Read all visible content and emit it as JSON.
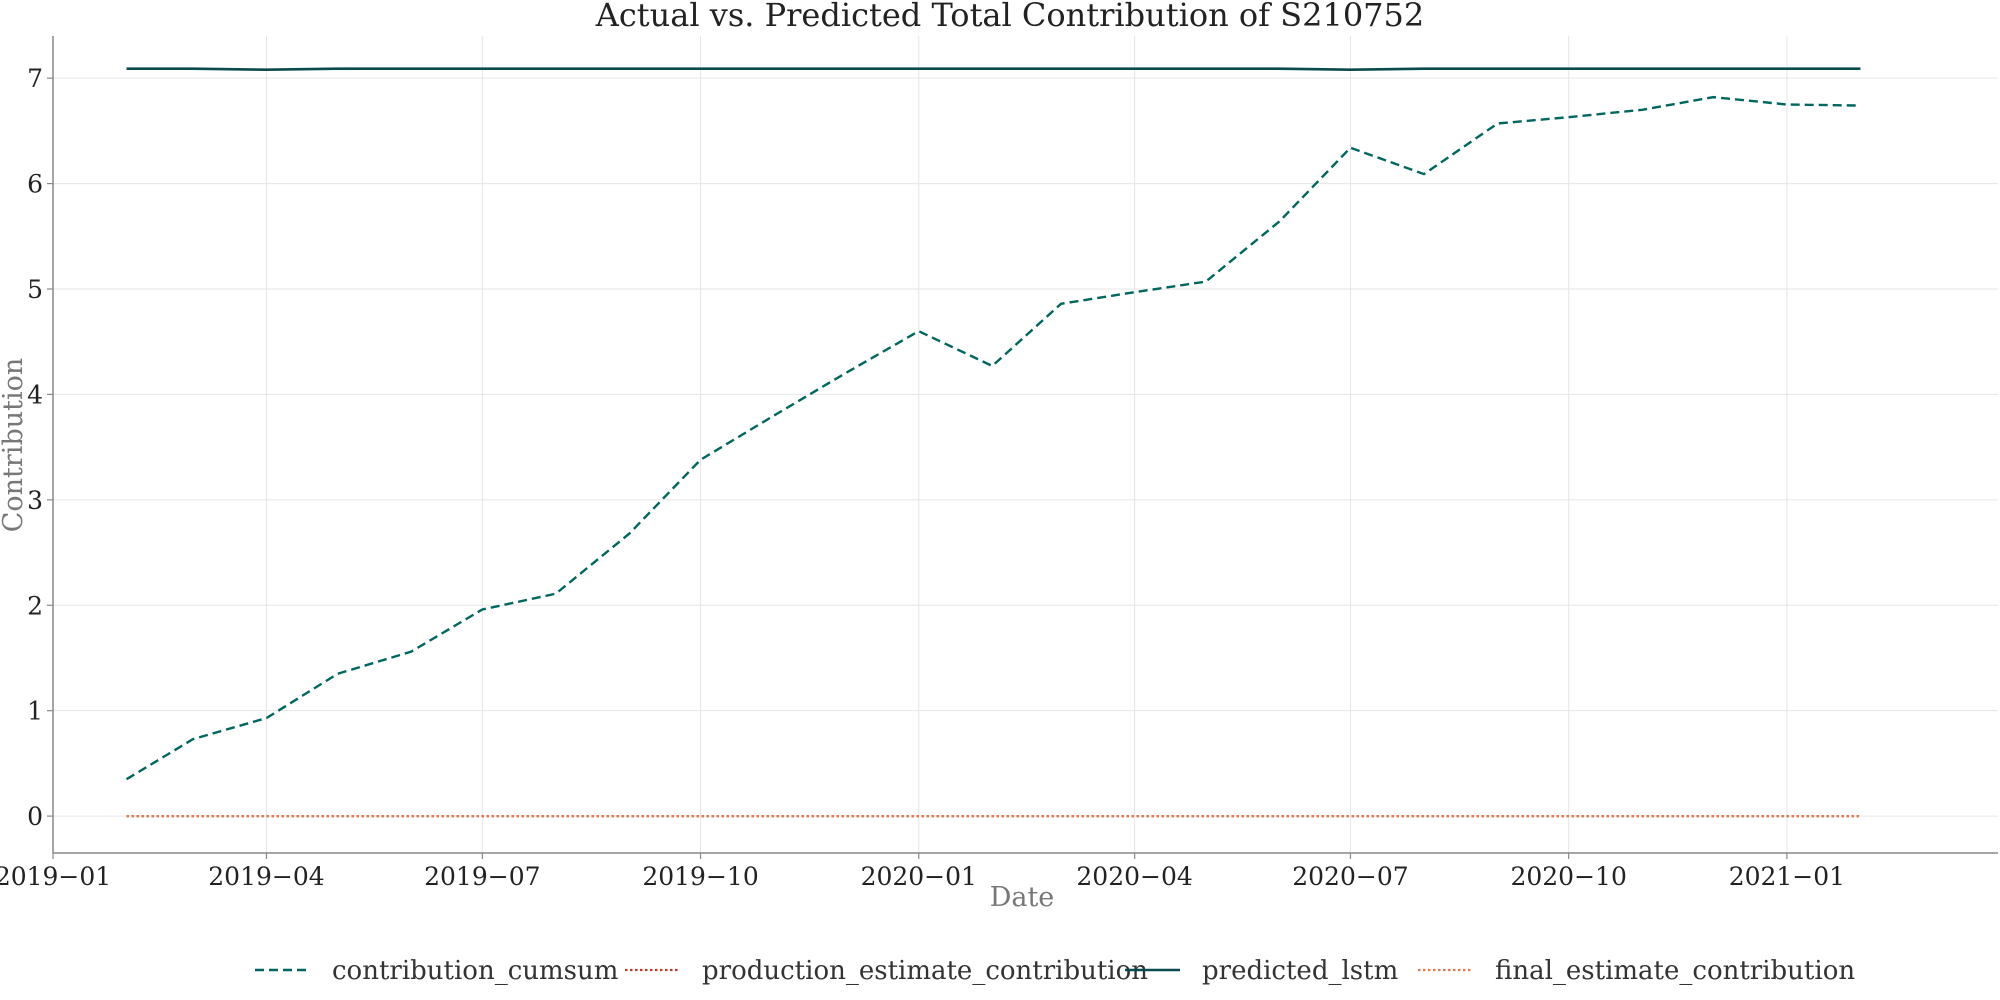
{
  "chart_data": {
    "type": "line",
    "title": "Actual vs. Predicted Total Contribution of S210752",
    "xlabel": "Date",
    "ylabel": "Contribution",
    "x_axis_type": "date",
    "xlim": [
      "2019-01-01",
      "2021-03-31"
    ],
    "ylim": [
      -0.35,
      7.4
    ],
    "x_ticks": [
      "2019-01-01",
      "2019-04-01",
      "2019-07-01",
      "2019-10-01",
      "2020-01-01",
      "2020-04-01",
      "2020-07-01",
      "2020-10-01",
      "2021-01-01"
    ],
    "x_tick_labels": [
      "2019−01",
      "2019−04",
      "2019−07",
      "2019−10",
      "2020−01",
      "2020−04",
      "2020−07",
      "2020−10",
      "2021−01"
    ],
    "y_ticks": [
      0,
      1,
      2,
      3,
      4,
      5,
      6,
      7
    ],
    "y_tick_labels": [
      "0",
      "1",
      "2",
      "3",
      "4",
      "5",
      "6",
      "7"
    ],
    "grid": true,
    "legend_position": "bottom-center",
    "x": [
      "2019-02-01",
      "2019-03-01",
      "2019-04-01",
      "2019-05-01",
      "2019-06-01",
      "2019-07-01",
      "2019-08-01",
      "2019-09-01",
      "2019-10-01",
      "2019-11-01",
      "2019-12-01",
      "2020-01-01",
      "2020-02-01",
      "2020-03-01",
      "2020-04-01",
      "2020-05-01",
      "2020-06-01",
      "2020-07-01",
      "2020-08-01",
      "2020-09-01",
      "2020-10-01",
      "2020-11-01",
      "2020-12-01",
      "2021-01-01",
      "2021-02-01"
    ],
    "series": [
      {
        "name": "contribution_cumsum",
        "color": "#00665e",
        "style": "dashed",
        "values": [
          0.35,
          0.73,
          0.93,
          1.35,
          1.56,
          1.96,
          2.11,
          2.68,
          3.38,
          3.8,
          4.2,
          4.6,
          4.27,
          4.86,
          4.97,
          5.07,
          5.64,
          6.34,
          6.09,
          6.57,
          6.63,
          6.7,
          6.82,
          6.75,
          6.74
        ]
      },
      {
        "name": "production_estimate_contribution",
        "color": "#c0392b",
        "style": "dotted",
        "values": [
          0,
          0,
          0,
          0,
          0,
          0,
          0,
          0,
          0,
          0,
          0,
          0,
          0,
          0,
          0,
          0,
          0,
          0,
          0,
          0,
          0,
          0,
          0,
          0,
          0
        ]
      },
      {
        "name": "predicted_lstm",
        "color": "#0b4a4e",
        "style": "solid",
        "values": [
          7.09,
          7.09,
          7.08,
          7.09,
          7.09,
          7.09,
          7.09,
          7.09,
          7.09,
          7.09,
          7.09,
          7.09,
          7.09,
          7.09,
          7.09,
          7.09,
          7.09,
          7.08,
          7.09,
          7.09,
          7.09,
          7.09,
          7.09,
          7.09,
          7.09
        ]
      },
      {
        "name": "final_estimate_contribution",
        "color": "#e07a4f",
        "style": "dotted",
        "values": [
          0,
          0,
          0,
          0,
          0,
          0,
          0,
          0,
          0,
          0,
          0,
          0,
          0,
          0,
          0,
          0,
          0,
          0,
          0,
          0,
          0,
          0,
          0,
          0,
          0
        ]
      }
    ],
    "legend": [
      "contribution_cumsum",
      "production_estimate_contribution",
      "predicted_lstm",
      "final_estimate_contribution"
    ]
  }
}
